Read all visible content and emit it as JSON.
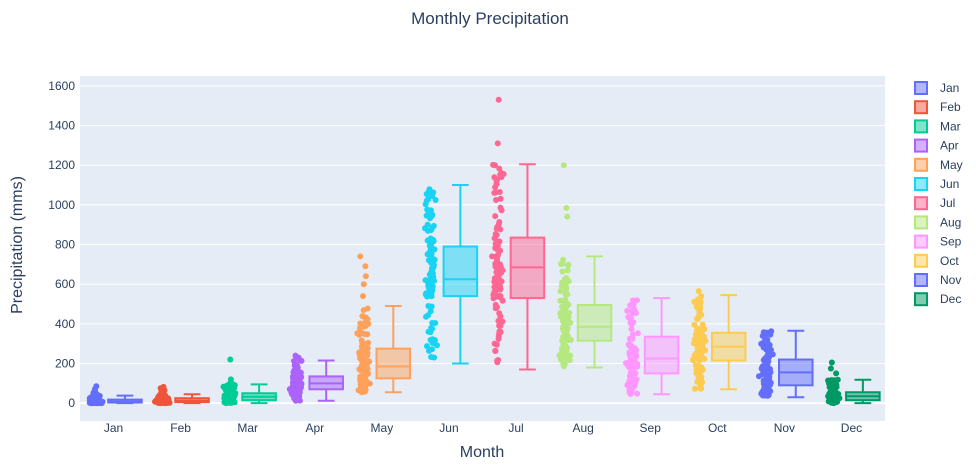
{
  "chart_data": {
    "type": "box",
    "title": "Monthly Precipitation",
    "xlabel": "Month",
    "ylabel": "Precipitation (mms)",
    "ylim": [
      -90,
      1650
    ],
    "yticks": [
      0,
      200,
      400,
      600,
      800,
      1000,
      1200,
      1400,
      1600
    ],
    "grid": true,
    "legend": "right",
    "points": "all",
    "series": [
      {
        "name": "Jan",
        "color": "#636efa",
        "min": 0,
        "q1": 3,
        "median": 8,
        "q3": 18,
        "max": 38,
        "outliers": [
          45,
          52,
          60,
          70,
          85
        ]
      },
      {
        "name": "Feb",
        "color": "#EF553B",
        "min": 0,
        "q1": 5,
        "median": 12,
        "q3": 25,
        "max": 45,
        "outliers": [
          50,
          58,
          65,
          75,
          82
        ]
      },
      {
        "name": "Mar",
        "color": "#00cc96",
        "min": 0,
        "q1": 15,
        "median": 32,
        "q3": 50,
        "max": 95,
        "outliers": [
          105,
          120,
          220
        ]
      },
      {
        "name": "Apr",
        "color": "#ab63fa",
        "min": 12,
        "q1": 70,
        "median": 100,
        "q3": 135,
        "max": 215,
        "outliers": [
          230,
          240
        ]
      },
      {
        "name": "May",
        "color": "#FFA15A",
        "min": 55,
        "q1": 125,
        "median": 185,
        "q3": 275,
        "max": 490,
        "outliers": [
          540,
          600,
          640,
          690,
          740
        ]
      },
      {
        "name": "Jun",
        "color": "#19d3f3",
        "min": 200,
        "q1": 540,
        "median": 625,
        "q3": 790,
        "max": 1100,
        "outliers": []
      },
      {
        "name": "Jul",
        "color": "#FF6692",
        "min": 170,
        "q1": 530,
        "median": 685,
        "q3": 835,
        "max": 1205,
        "outliers": [
          1310,
          1530
        ]
      },
      {
        "name": "Aug",
        "color": "#B6E880",
        "min": 180,
        "q1": 315,
        "median": 385,
        "q3": 495,
        "max": 740,
        "outliers": [
          940,
          985,
          1200
        ]
      },
      {
        "name": "Sep",
        "color": "#FF97FF",
        "min": 45,
        "q1": 150,
        "median": 225,
        "q3": 335,
        "max": 530,
        "outliers": []
      },
      {
        "name": "Oct",
        "color": "#FECB52",
        "min": 70,
        "q1": 215,
        "median": 285,
        "q3": 355,
        "max": 545,
        "outliers": [
          565
        ]
      },
      {
        "name": "Nov",
        "color": "#636efa",
        "min": 30,
        "q1": 90,
        "median": 155,
        "q3": 220,
        "max": 365,
        "outliers": []
      },
      {
        "name": "Dec",
        "color": "#009966",
        "min": 0,
        "q1": 15,
        "median": 35,
        "q3": 55,
        "max": 118,
        "outliers": [
          150,
          175,
          205
        ]
      }
    ]
  }
}
